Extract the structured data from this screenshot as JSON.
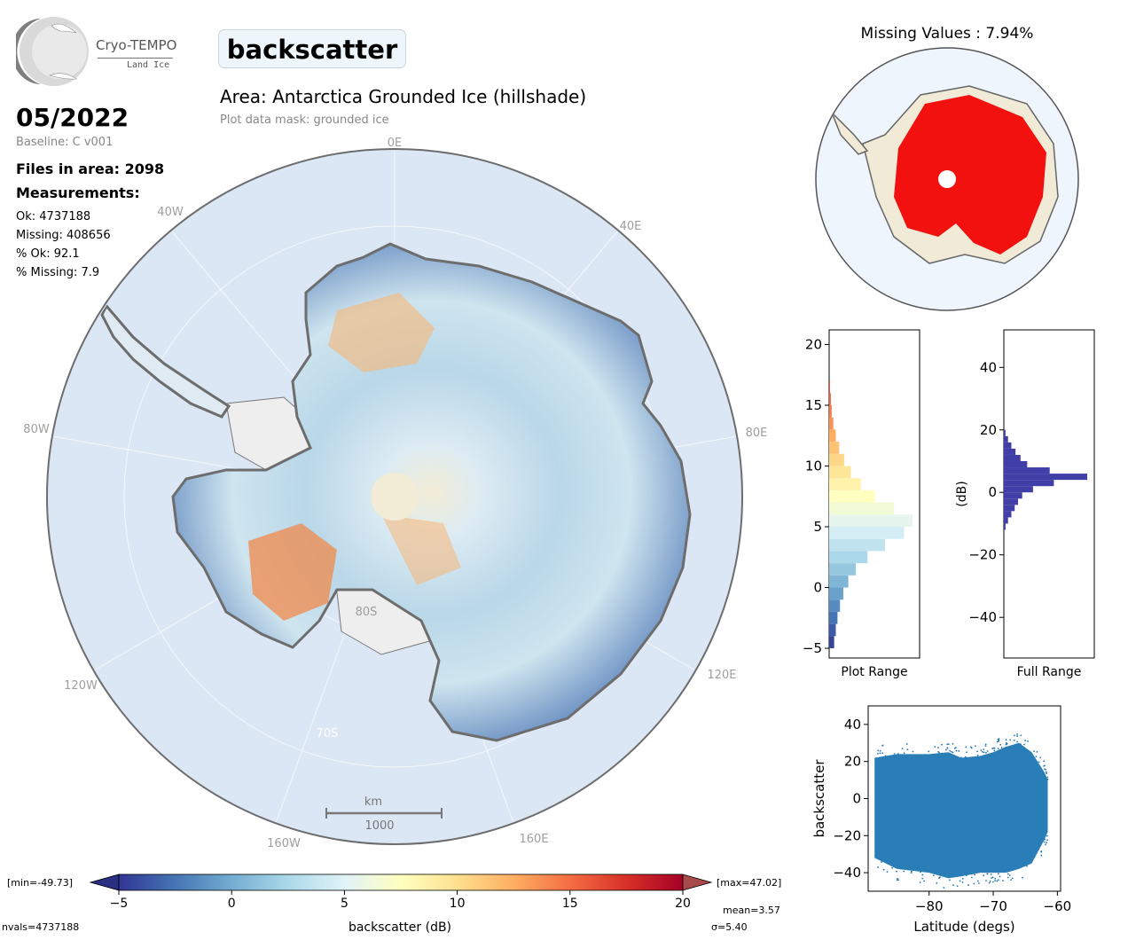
{
  "logo": {
    "name": "Cryo-TEMPO",
    "subtitle": "Land Ice"
  },
  "title": "backscatter",
  "area": "Area: Antarctica Grounded Ice (hillshade)",
  "mask": "Plot data mask: grounded ice",
  "date": "05/2022",
  "baseline": "Baseline: C v001",
  "files": "Files in area: 2098",
  "measurements_label": "Measurements:",
  "stats": {
    "ok": "Ok: 4737188",
    "missing": "Missing: 408656",
    "pct_ok": "% Ok: 92.1",
    "pct_missing": "% Missing: 7.9"
  },
  "map": {
    "lon_labels": {
      "l0": "0E",
      "l40w": "40W",
      "l40e": "40E",
      "l80w": "80W",
      "l80e": "80E",
      "l120w": "120W",
      "l120e": "120E",
      "l160w": "160W",
      "l160e": "160E"
    },
    "lat_labels": {
      "l80s": "80S",
      "l70s": "70S"
    },
    "scalebar": {
      "unit": "km",
      "value": "1000"
    }
  },
  "missing_title": "Missing Values : 7.94%",
  "colorbar": {
    "label": "backscatter (dB)",
    "min_label": "[min=-49.73]",
    "max_label": "[max=47.02]",
    "ticks": [
      "−5",
      "0",
      "5",
      "10",
      "15",
      "20"
    ],
    "nvals": "nvals=4737188",
    "mean": "mean=3.57",
    "sigma": "σ=5.40",
    "colors": [
      "#313695",
      "#4575b4",
      "#74add1",
      "#abd9e9",
      "#e0f3f8",
      "#ffffbf",
      "#fee090",
      "#fdae61",
      "#f46d43",
      "#d73027",
      "#a50026"
    ]
  },
  "chart_data": [
    {
      "type": "bar",
      "orientation": "horizontal",
      "name": "plot-range-histogram",
      "xlabel": "Plot Range",
      "ylim": [
        -5.8,
        21.2
      ],
      "yticks": [
        "20",
        "15",
        "10",
        "5",
        "0",
        "−5"
      ],
      "bins": [
        -5,
        -4,
        -3,
        -2,
        -1,
        0,
        1,
        2,
        3,
        4,
        5,
        6,
        7,
        8,
        9,
        10,
        11,
        12,
        13,
        14,
        15,
        16
      ],
      "values": [
        0.06,
        0.08,
        0.1,
        0.13,
        0.17,
        0.23,
        0.32,
        0.46,
        0.67,
        0.9,
        1.0,
        0.78,
        0.55,
        0.38,
        0.26,
        0.18,
        0.12,
        0.08,
        0.05,
        0.03,
        0.02,
        0.01
      ]
    },
    {
      "type": "bar",
      "orientation": "horizontal",
      "name": "full-range-histogram",
      "xlabel": "Full Range",
      "ylabel": "(dB)",
      "ylim": [
        -53,
        52
      ],
      "yticks": [
        "40",
        "20",
        "0",
        "−20",
        "−40"
      ],
      "color": "#3f3fa7",
      "bins": [
        -12,
        -10,
        -8,
        -6,
        -4,
        -2,
        0,
        2,
        4,
        6,
        8,
        10,
        12,
        14,
        16,
        18
      ],
      "values": [
        0.02,
        0.05,
        0.09,
        0.13,
        0.17,
        0.22,
        0.35,
        0.6,
        1.0,
        0.55,
        0.28,
        0.2,
        0.14,
        0.09,
        0.05,
        0.02
      ]
    },
    {
      "type": "scatter",
      "name": "backscatter-vs-latitude",
      "xlabel": "Latitude (degs)",
      "ylabel": "backscatter",
      "xlim": [
        -89.5,
        -59.5
      ],
      "ylim": [
        -50,
        50
      ],
      "xticks": [
        "−80",
        "−70",
        "−60"
      ],
      "yticks": [
        "40",
        "20",
        "0",
        "−20",
        "−40"
      ],
      "color": "#1f77b4",
      "envelope": {
        "latitude": [
          -88.5,
          -85,
          -80,
          -77,
          -75,
          -72,
          -70,
          -68,
          -66,
          -64,
          -62,
          -61.5
        ],
        "upper": [
          22,
          24,
          24,
          25,
          22,
          23,
          25,
          28,
          30,
          25,
          14,
          10
        ],
        "lower": [
          -32,
          -38,
          -40,
          -43,
          -42,
          -40,
          -40,
          -40,
          -38,
          -35,
          -22,
          -18
        ]
      }
    }
  ]
}
